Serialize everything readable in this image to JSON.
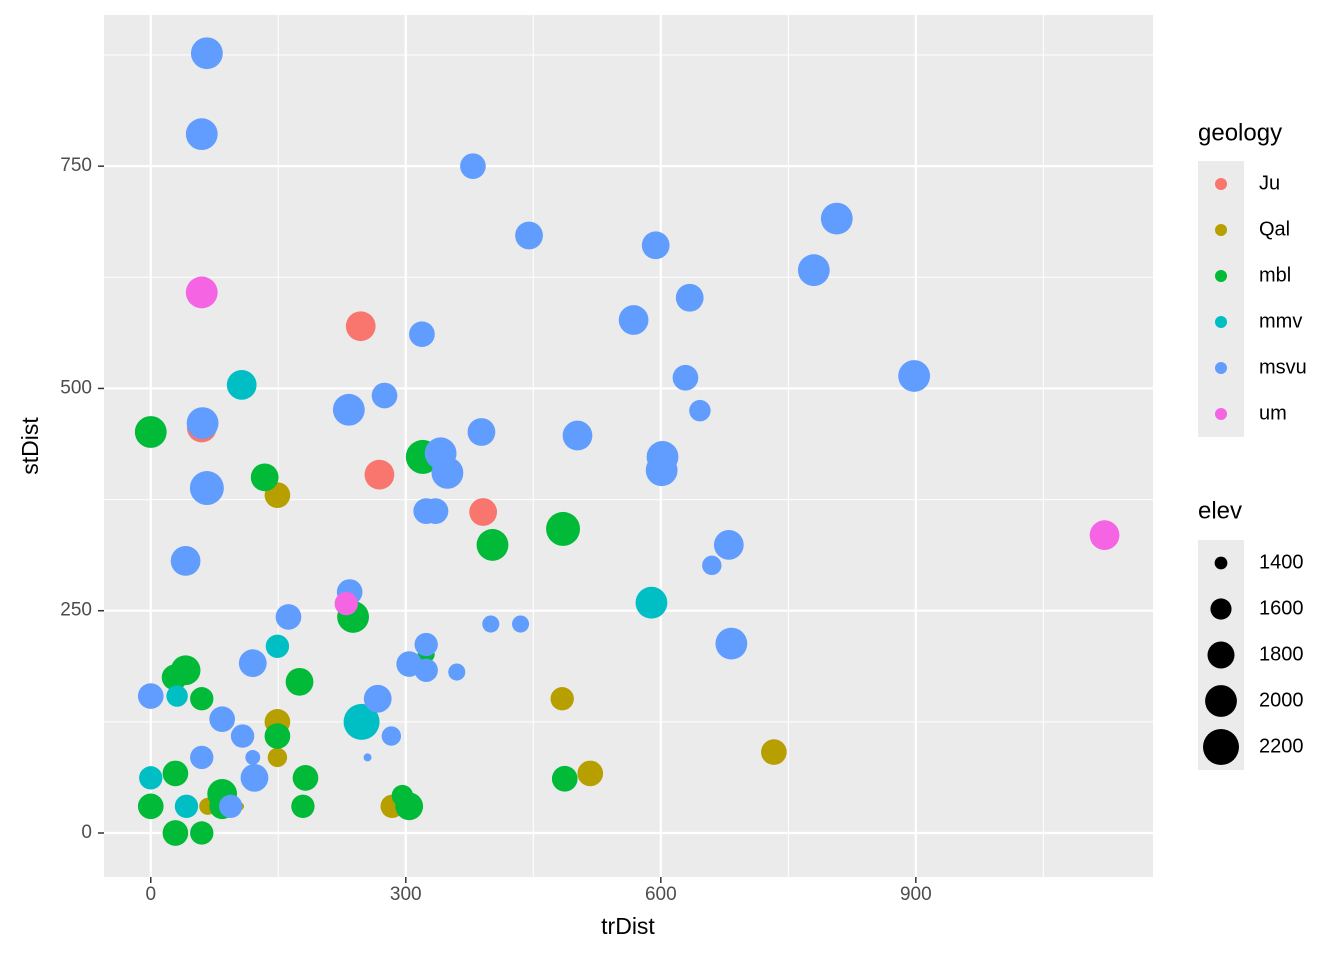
{
  "chart_data": {
    "type": "scatter",
    "x_label": "trDist",
    "y_label": "stDist",
    "xlim": [
      -55,
      1179
    ],
    "ylim": [
      -49.5,
      920
    ],
    "xticks": [
      0,
      300,
      600,
      900
    ],
    "yticks": [
      0,
      250,
      500,
      750
    ],
    "grid": true,
    "color_legend_title": "geology",
    "size_legend_title": "elev",
    "size_breaks": [
      1400,
      1600,
      1800,
      2000,
      2200
    ],
    "series": [
      {
        "name": "Ju",
        "color": "#F8766D",
        "x": [
          247,
          269,
          60,
          391
        ],
        "y": [
          570,
          403,
          456,
          361
        ],
        "sizes": [
          1910,
          1910,
          1910,
          1830
        ]
      },
      {
        "name": "Qal",
        "color": "#B79F00",
        "x": [
          149,
          149,
          149,
          282,
          484,
          733,
          517,
          284,
          67,
          105
        ],
        "y": [
          380,
          125,
          85,
          109,
          151,
          91,
          67,
          30,
          30,
          30
        ],
        "sizes": [
          1750,
          1750,
          1550,
          1490,
          1670,
          1750,
          1750,
          1670,
          1490,
          1330
        ]
      },
      {
        "name": "mbl",
        "color": "#00BA38",
        "x": [
          0,
          134,
          320,
          485,
          402,
          238,
          324,
          41,
          28,
          60,
          175,
          149,
          29,
          182,
          84,
          84,
          0,
          179,
          296,
          304,
          487,
          29,
          60
        ],
        "y": [
          451,
          400,
          423,
          342,
          324,
          243,
          201,
          183,
          175,
          151,
          170,
          109,
          67,
          62,
          44,
          30,
          30,
          30,
          42,
          30,
          61,
          0,
          0
        ],
        "sizes": [
          2000,
          1830,
          2100,
          2100,
          2000,
          2000,
          1490,
          1910,
          1750,
          1670,
          1830,
          1750,
          1750,
          1750,
          1910,
          1750,
          1750,
          1670,
          1610,
          1830,
          1750,
          1750,
          1670
        ]
      },
      {
        "name": "mmv",
        "color": "#00BFC4",
        "x": [
          107,
          589,
          149,
          31,
          248,
          0,
          42
        ],
        "y": [
          504,
          259,
          210,
          154,
          125,
          62,
          30
        ],
        "sizes": [
          1910,
          2000,
          1670,
          1610,
          2200,
          1670,
          1670
        ]
      },
      {
        "name": "msvu",
        "color": "#619CFF",
        "x": [
          66,
          60,
          379,
          445,
          594,
          807,
          780,
          634,
          568,
          319,
          629,
          898,
          646,
          66,
          61,
          233,
          275,
          389,
          502,
          602,
          601,
          341,
          349,
          324,
          335,
          680,
          660,
          41,
          234,
          162,
          400,
          435,
          683,
          324,
          304,
          324,
          360,
          120,
          267,
          0,
          84,
          108,
          283,
          120,
          60,
          255,
          122,
          94
        ],
        "y": [
          877,
          786,
          750,
          672,
          661,
          691,
          633,
          602,
          577,
          561,
          512,
          514,
          475,
          388,
          461,
          476,
          492,
          451,
          447,
          423,
          408,
          427,
          405,
          362,
          362,
          324,
          301,
          306,
          271,
          243,
          235,
          235,
          213,
          212,
          190,
          183,
          181,
          191,
          151,
          154,
          128,
          109,
          109,
          85,
          85,
          85,
          62,
          30
        ],
        "sizes": [
          2000,
          2000,
          1750,
          1830,
          1830,
          2000,
          2000,
          1830,
          1910,
          1750,
          1750,
          2000,
          1610,
          2100,
          2000,
          2000,
          1750,
          1830,
          1910,
          2000,
          2000,
          2000,
          2000,
          1750,
          1750,
          1910,
          1550,
          1910,
          1750,
          1750,
          1490,
          1490,
          2000,
          1670,
          1750,
          1670,
          1490,
          1830,
          1830,
          1750,
          1750,
          1670,
          1550,
          1440,
          1670,
          1330,
          1830,
          1670
        ]
      },
      {
        "name": "um",
        "color": "#F564E3",
        "x": [
          60,
          1122,
          230
        ],
        "y": [
          608,
          335,
          258
        ],
        "sizes": [
          2000,
          1910,
          1670
        ]
      }
    ]
  }
}
